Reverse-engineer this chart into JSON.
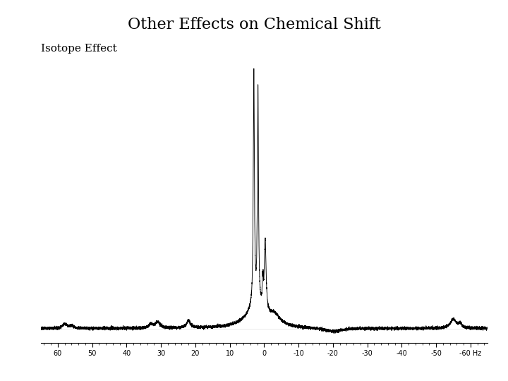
{
  "title": "Other Effects on Chemical Shift",
  "subtitle": "Isotope Effect",
  "x_ticks": [
    60,
    50,
    40,
    30,
    20,
    10,
    0,
    -10,
    -20,
    -30,
    -40,
    -50,
    -60
  ],
  "xlim": [
    65,
    -65
  ],
  "ylim": [
    -0.06,
    1.08
  ],
  "background_color": "#ffffff",
  "line_color": "#000000",
  "title_fontsize": 16,
  "subtitle_fontsize": 11
}
